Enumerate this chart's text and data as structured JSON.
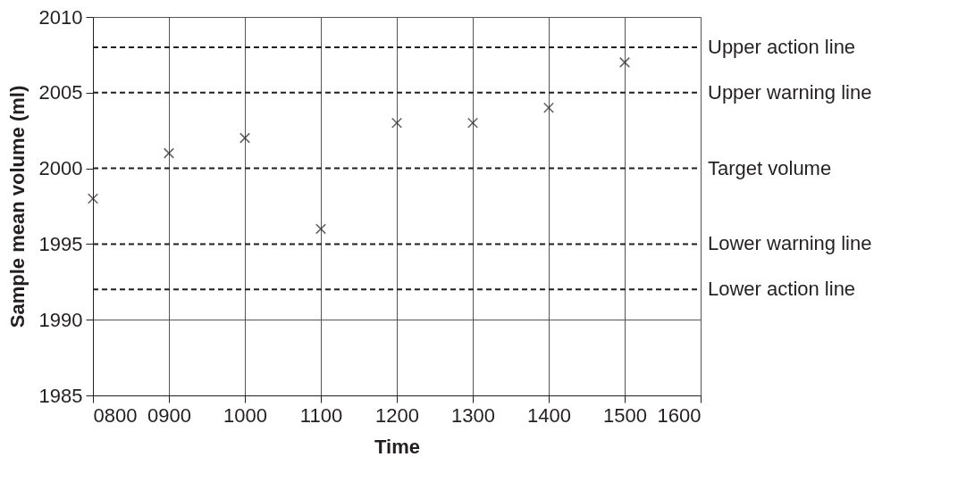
{
  "chart_data": {
    "type": "scatter",
    "xlabel": "Time",
    "ylabel": "Sample mean volume (ml)",
    "x": [
      800,
      900,
      1000,
      1100,
      1200,
      1300,
      1400,
      1500
    ],
    "series": [
      {
        "color": "#231f20",
        "values": [
          1998,
          2001,
          2002,
          1996,
          2003,
          2003,
          2004,
          2007
        ]
      }
    ],
    "xlim": [
      800,
      1600
    ],
    "xticks": [
      {
        "value": 800,
        "label": "0800"
      },
      {
        "value": 900,
        "label": "0900"
      },
      1000,
      1100,
      1200,
      1300,
      1400,
      1500,
      1600
    ],
    "ylim": [
      1985,
      2010
    ],
    "yticks": [
      1985,
      1990,
      1995,
      2000,
      2005,
      2010
    ],
    "ref_lines": [
      {
        "axis": "y",
        "value": 2008,
        "label": "Upper action line",
        "color": "#231f20",
        "line_style": "dashed"
      },
      {
        "axis": "y",
        "value": 2005,
        "label": "Upper warning line",
        "color": "#231f20",
        "line_style": "dashed"
      },
      {
        "axis": "y",
        "value": 2000,
        "label": "Target volume",
        "color": "#231f20",
        "line_style": "dashed"
      },
      {
        "axis": "y",
        "value": 1995,
        "label": "Lower warning line",
        "color": "#231f20",
        "line_style": "dashed"
      },
      {
        "axis": "y",
        "value": 1992,
        "label": "Lower action line",
        "color": "#231f20",
        "line_style": "dashed"
      }
    ],
    "grid": true,
    "marker": "cross"
  }
}
